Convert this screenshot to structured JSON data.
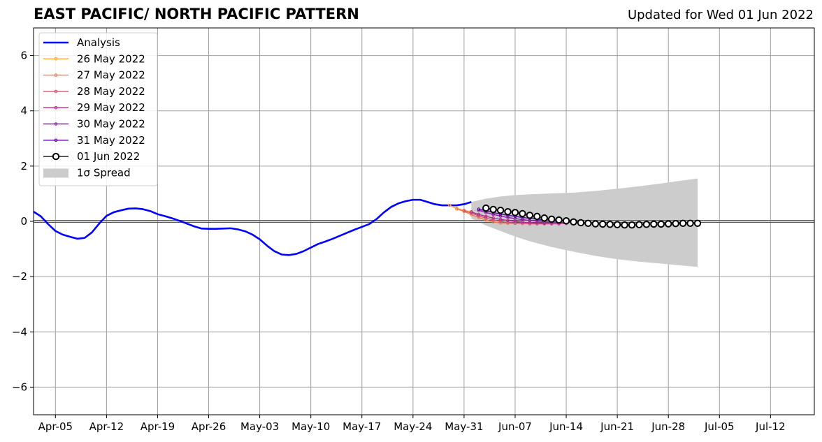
{
  "header": {
    "title": "EAST PACIFIC/ NORTH PACIFIC PATTERN",
    "updated": "Updated for Wed 01 Jun 2022"
  },
  "chart_data": {
    "type": "line",
    "title": "EAST PACIFIC/ NORTH PACIFIC PATTERN",
    "subtitle": "Updated for Wed 01 Jun 2022",
    "xlabel": "",
    "ylabel": "",
    "xlim": [
      "2022-04-02",
      "2022-07-18"
    ],
    "ylim": [
      -7,
      7
    ],
    "grid": true,
    "legend_position": "top-left",
    "x_ticks": [
      "2022-04-05",
      "2022-04-12",
      "2022-04-19",
      "2022-04-26",
      "2022-05-03",
      "2022-05-10",
      "2022-05-17",
      "2022-05-24",
      "2022-05-31",
      "2022-06-07",
      "2022-06-14",
      "2022-06-21",
      "2022-06-28",
      "2022-07-05",
      "2022-07-12"
    ],
    "x_tick_labels": [
      "Apr-05",
      "Apr-12",
      "Apr-19",
      "Apr-26",
      "May-03",
      "May-10",
      "May-17",
      "May-24",
      "May-31",
      "Jun-07",
      "Jun-14",
      "Jun-21",
      "Jun-28",
      "Jul-05",
      "Jul-12"
    ],
    "y_ticks": [
      -6,
      -4,
      -2,
      0,
      2,
      4,
      6
    ],
    "y_tick_labels": [
      "−6",
      "−4",
      "−2",
      "0",
      "2",
      "4",
      "6"
    ],
    "legend": [
      {
        "label": "Analysis",
        "color": "#0000ff",
        "kind": "line"
      },
      {
        "label": "26 May 2022",
        "color": "#fca636",
        "kind": "dotline"
      },
      {
        "label": "27 May 2022",
        "color": "#ef7b4f",
        "kind": "dotline"
      },
      {
        "label": "28 May 2022",
        "color": "#d5546e",
        "kind": "dotline"
      },
      {
        "label": "29 May 2022",
        "color": "#b12a90",
        "kind": "dotline"
      },
      {
        "label": "30 May 2022",
        "color": "#8a1fa0",
        "kind": "dotline"
      },
      {
        "label": "31 May 2022",
        "color": "#5c01a6",
        "kind": "dotline"
      },
      {
        "label": "01 Jun 2022",
        "color": "#000000",
        "kind": "circle"
      },
      {
        "label": "1σ Spread",
        "color": "#cccccc",
        "kind": "patch"
      }
    ],
    "series": [
      {
        "name": "Analysis",
        "color": "#0000ff",
        "x": [
          "2022-04-02",
          "2022-04-03",
          "2022-04-04",
          "2022-04-05",
          "2022-04-06",
          "2022-04-07",
          "2022-04-08",
          "2022-04-09",
          "2022-04-10",
          "2022-04-11",
          "2022-04-12",
          "2022-04-13",
          "2022-04-14",
          "2022-04-15",
          "2022-04-16",
          "2022-04-17",
          "2022-04-18",
          "2022-04-19",
          "2022-04-20",
          "2022-04-21",
          "2022-04-22",
          "2022-04-23",
          "2022-04-24",
          "2022-04-25",
          "2022-04-26",
          "2022-04-27",
          "2022-04-28",
          "2022-04-29",
          "2022-04-30",
          "2022-05-01",
          "2022-05-02",
          "2022-05-03",
          "2022-05-04",
          "2022-05-05",
          "2022-05-06",
          "2022-05-07",
          "2022-05-08",
          "2022-05-09",
          "2022-05-10",
          "2022-05-11",
          "2022-05-12",
          "2022-05-13",
          "2022-05-14",
          "2022-05-15",
          "2022-05-16",
          "2022-05-17",
          "2022-05-18",
          "2022-05-19",
          "2022-05-20",
          "2022-05-21",
          "2022-05-22",
          "2022-05-23",
          "2022-05-24",
          "2022-05-25",
          "2022-05-26",
          "2022-05-27",
          "2022-05-28",
          "2022-05-29",
          "2022-05-30",
          "2022-05-31",
          "2022-06-01"
        ],
        "y": [
          0.35,
          0.18,
          -0.1,
          -0.35,
          -0.48,
          -0.56,
          -0.63,
          -0.6,
          -0.4,
          -0.08,
          0.2,
          0.33,
          0.4,
          0.46,
          0.47,
          0.44,
          0.37,
          0.26,
          0.19,
          0.11,
          0.02,
          -0.08,
          -0.18,
          -0.26,
          -0.27,
          -0.27,
          -0.26,
          -0.25,
          -0.29,
          -0.36,
          -0.48,
          -0.65,
          -0.88,
          -1.08,
          -1.2,
          -1.22,
          -1.18,
          -1.08,
          -0.95,
          -0.82,
          -0.73,
          -0.63,
          -0.52,
          -0.41,
          -0.3,
          -0.2,
          -0.1,
          0.08,
          0.32,
          0.52,
          0.65,
          0.73,
          0.78,
          0.78,
          0.7,
          0.62,
          0.58,
          0.58,
          0.58,
          0.62,
          0.7
        ]
      },
      {
        "name": "26 May 2022",
        "color": "#fca636",
        "x": [
          "2022-05-29",
          "2022-05-30",
          "2022-05-31",
          "2022-06-01"
        ],
        "y": [
          0.58,
          0.47,
          0.4,
          0.35
        ]
      },
      {
        "name": "27 May 2022",
        "color": "#ef7b4f",
        "x": [
          "2022-05-30",
          "2022-05-31",
          "2022-06-01",
          "2022-06-02",
          "2022-06-03",
          "2022-06-04",
          "2022-06-05",
          "2022-06-06",
          "2022-06-07"
        ],
        "y": [
          0.45,
          0.36,
          0.24,
          0.14,
          0.05,
          -0.02,
          -0.06,
          -0.07,
          -0.07
        ]
      },
      {
        "name": "28 May 2022",
        "color": "#d5546e",
        "x": [
          "2022-05-31",
          "2022-06-01",
          "2022-06-02",
          "2022-06-03",
          "2022-06-04",
          "2022-06-05",
          "2022-06-06",
          "2022-06-07",
          "2022-06-08",
          "2022-06-09",
          "2022-06-10",
          "2022-06-11",
          "2022-06-12",
          "2022-06-13"
        ],
        "y": [
          0.38,
          0.3,
          0.2,
          0.12,
          0.05,
          0.0,
          -0.04,
          -0.07,
          -0.08,
          -0.09,
          -0.09,
          -0.09,
          -0.09,
          -0.09
        ]
      },
      {
        "name": "29 May 2022",
        "color": "#b12a90",
        "x": [
          "2022-06-01",
          "2022-06-02",
          "2022-06-03",
          "2022-06-04",
          "2022-06-05",
          "2022-06-06",
          "2022-06-07",
          "2022-06-08",
          "2022-06-09",
          "2022-06-10",
          "2022-06-11",
          "2022-06-12",
          "2022-06-13",
          "2022-06-14"
        ],
        "y": [
          0.34,
          0.25,
          0.18,
          0.12,
          0.07,
          0.03,
          0.0,
          -0.03,
          -0.05,
          -0.06,
          -0.07,
          -0.08,
          -0.08,
          -0.08
        ]
      },
      {
        "name": "30 May 2022",
        "color": "#8a1fa0",
        "x": [
          "2022-06-02",
          "2022-06-03",
          "2022-06-04",
          "2022-06-05",
          "2022-06-06",
          "2022-06-07",
          "2022-06-08",
          "2022-06-09",
          "2022-06-10",
          "2022-06-11",
          "2022-06-12",
          "2022-06-13",
          "2022-06-14"
        ],
        "y": [
          0.4,
          0.32,
          0.25,
          0.19,
          0.14,
          0.1,
          0.06,
          0.03,
          0.01,
          -0.01,
          -0.02,
          -0.03,
          -0.04
        ]
      },
      {
        "name": "31 May 2022",
        "color": "#5c01a6",
        "x": [
          "2022-06-02",
          "2022-06-03",
          "2022-06-04",
          "2022-06-05",
          "2022-06-06",
          "2022-06-07",
          "2022-06-08",
          "2022-06-09",
          "2022-06-10",
          "2022-06-11",
          "2022-06-12",
          "2022-06-13",
          "2022-06-14"
        ],
        "y": [
          0.44,
          0.38,
          0.32,
          0.26,
          0.22,
          0.18,
          0.14,
          0.11,
          0.08,
          0.06,
          0.04,
          0.02,
          0.01
        ]
      },
      {
        "name": "01 Jun 2022",
        "color": "#000000",
        "x": [
          "2022-06-03",
          "2022-06-04",
          "2022-06-05",
          "2022-06-06",
          "2022-06-07",
          "2022-06-08",
          "2022-06-09",
          "2022-06-10",
          "2022-06-11",
          "2022-06-12",
          "2022-06-13",
          "2022-06-14",
          "2022-06-15",
          "2022-06-16",
          "2022-06-17",
          "2022-06-18",
          "2022-06-19",
          "2022-06-20",
          "2022-06-21",
          "2022-06-22",
          "2022-06-23",
          "2022-06-24",
          "2022-06-25",
          "2022-06-26",
          "2022-06-27",
          "2022-06-28",
          "2022-06-29",
          "2022-06-30",
          "2022-07-01",
          "2022-07-02"
        ],
        "y": [
          0.48,
          0.43,
          0.4,
          0.35,
          0.32,
          0.28,
          0.22,
          0.18,
          0.12,
          0.08,
          0.05,
          0.02,
          -0.02,
          -0.05,
          -0.07,
          -0.09,
          -0.1,
          -0.11,
          -0.12,
          -0.13,
          -0.13,
          -0.12,
          -0.11,
          -0.1,
          -0.1,
          -0.09,
          -0.08,
          -0.07,
          -0.07,
          -0.07
        ]
      }
    ],
    "spread": {
      "name": "1σ Spread",
      "color": "#cccccc",
      "x": [
        "2022-06-01",
        "2022-06-03",
        "2022-06-05",
        "2022-06-07",
        "2022-06-09",
        "2022-06-12",
        "2022-06-15",
        "2022-06-18",
        "2022-06-21",
        "2022-06-24",
        "2022-06-27",
        "2022-06-30",
        "2022-07-02"
      ],
      "upper": [
        0.7,
        0.82,
        0.9,
        0.95,
        0.98,
        1.01,
        1.04,
        1.1,
        1.18,
        1.27,
        1.37,
        1.48,
        1.55
      ],
      "lower": [
        0.1,
        -0.15,
        -0.35,
        -0.55,
        -0.72,
        -0.93,
        -1.1,
        -1.25,
        -1.37,
        -1.46,
        -1.53,
        -1.6,
        -1.65
      ]
    }
  }
}
